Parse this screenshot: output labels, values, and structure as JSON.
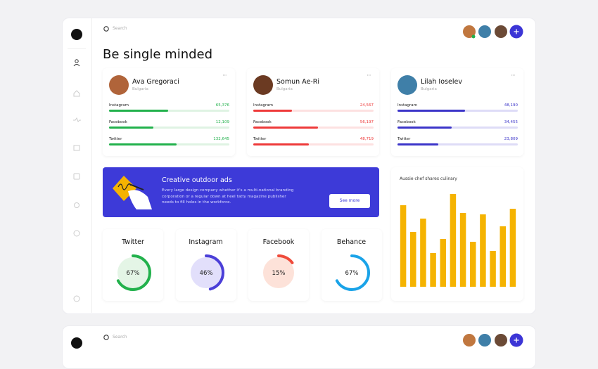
{
  "header": {
    "search": "Search"
  },
  "title": "Be single minded",
  "profiles": [
    {
      "name": "Ava Gregoraci",
      "location": "Bulgaria",
      "color": "#22b14c",
      "track": "#dff3e3",
      "avatar": "#b0643a",
      "stats": [
        {
          "label": "Instagram",
          "value": "65,376",
          "progress": 49
        },
        {
          "label": "Facebook",
          "value": "12,109",
          "progress": 37
        },
        {
          "label": "Twitter",
          "value": "132,645",
          "progress": 56
        }
      ]
    },
    {
      "name": "Somun Ae-Ri",
      "location": "Bulgaria",
      "color": "#ee3a3a",
      "track": "#fde1e1",
      "avatar": "#6b3a22",
      "stats": [
        {
          "label": "Instagram",
          "value": "24,567",
          "progress": 32
        },
        {
          "label": "Facebook",
          "value": "56,197",
          "progress": 54
        },
        {
          "label": "Twitter",
          "value": "48,719",
          "progress": 46
        }
      ]
    },
    {
      "name": "Lilah Ioselev",
      "location": "Bulgaria",
      "color": "#3c35c9",
      "track": "#dedcf7",
      "avatar": "#3f7fa8",
      "stats": [
        {
          "label": "Instagram",
          "value": "48,190",
          "progress": 56
        },
        {
          "label": "Facebook",
          "value": "34,455",
          "progress": 45
        },
        {
          "label": "Twitter",
          "value": "23,809",
          "progress": 34
        }
      ]
    }
  ],
  "banner": {
    "title": "Creative outdoor ads",
    "text": "Every large design company whether it's a multi-national branding corporation or a regular down at heel tatty magazine publisher needs to fill holes in the workforce.",
    "button": "See more"
  },
  "donuts": {
    "labels": [
      "Twitter",
      "Instagram",
      "Facebook",
      "Behance"
    ],
    "values": [
      67,
      46,
      15,
      67
    ],
    "value_labels": [
      "67%",
      "46%",
      "15%",
      "67%"
    ],
    "colors": [
      "#22b14c",
      "#4b3fd8",
      "#ef4b3b",
      "#1aa3e8"
    ],
    "fills": [
      "#e4f5e6",
      "#e2dffb",
      "#fde2d9",
      "#ffffff"
    ]
  },
  "chart_data": {
    "type": "bar",
    "title": "Aussie chef shares culinary",
    "categories": [
      null,
      null,
      null,
      null,
      null,
      null,
      null,
      null,
      null,
      null,
      null,
      null
    ],
    "values": [
      116,
      78,
      97,
      48,
      68,
      132,
      105,
      64,
      103,
      51,
      86,
      111
    ],
    "ylim": [
      0,
      140
    ],
    "color": "#f5b301"
  },
  "preview": {
    "search": "Search"
  }
}
